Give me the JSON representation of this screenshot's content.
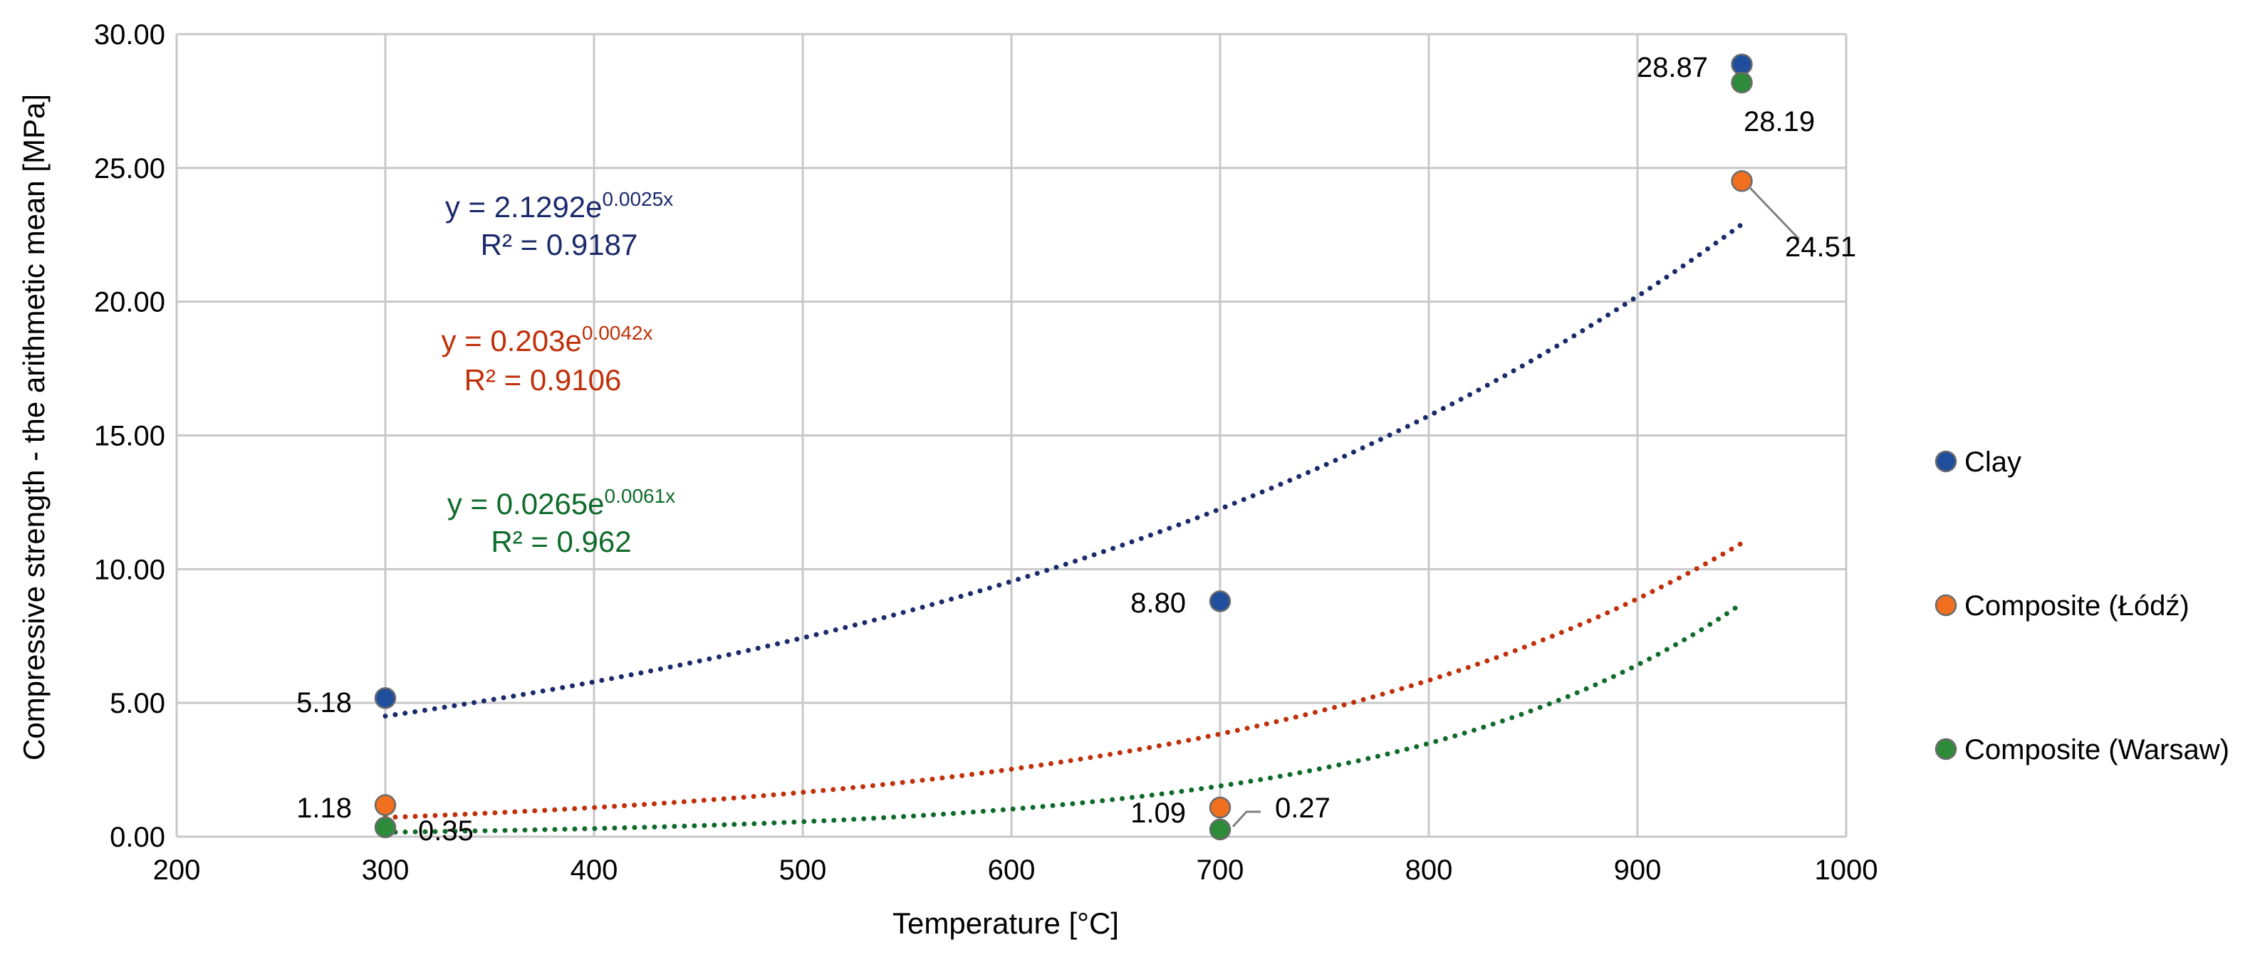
{
  "chart_data": {
    "type": "scatter",
    "title": "",
    "xlabel": "Temperature [°C]",
    "ylabel": "Compressive strength - the arithmetic mean [MPa]",
    "xlim": [
      200,
      1000
    ],
    "ylim": [
      0,
      30
    ],
    "xticks": [
      200,
      300,
      400,
      500,
      600,
      700,
      800,
      900,
      1000
    ],
    "xtick_labels": [
      "200",
      "300",
      "400",
      "500",
      "600",
      "700",
      "800",
      "900",
      "1000"
    ],
    "yticks": [
      0,
      5,
      10,
      15,
      20,
      25,
      30
    ],
    "ytick_labels": [
      "0.00",
      "5.00",
      "10.00",
      "15.00",
      "20.00",
      "25.00",
      "30.00"
    ],
    "grid": true,
    "legend_position": "right",
    "series": [
      {
        "name": "Clay",
        "color": "#1f4e9c",
        "x": [
          300,
          700,
          950
        ],
        "values": [
          5.18,
          8.8,
          28.87
        ],
        "labels": [
          "5.18",
          "8.80",
          "28.87"
        ],
        "trend": {
          "a": 2.1292,
          "b": 0.0025,
          "color": "#1b2a6b",
          "equation_prefix": "y = 2.1292e",
          "equation_exp": "0.0025x",
          "r2_text": "R² = 0.9187"
        }
      },
      {
        "name": "Composite (Łódź)",
        "color": "#f07020",
        "x": [
          300,
          700,
          950
        ],
        "values": [
          1.18,
          1.09,
          24.51
        ],
        "labels": [
          "1.18",
          "1.09",
          "24.51"
        ],
        "trend": {
          "a": 0.203,
          "b": 0.0042,
          "color": "#c0300a",
          "equation_prefix": "y = 0.203e",
          "equation_exp": "0.0042x",
          "r2_text": "R² = 0.9106"
        }
      },
      {
        "name": "Composite (Warsaw)",
        "color": "#2e8b3a",
        "x": [
          300,
          700,
          950
        ],
        "values": [
          0.35,
          0.27,
          28.19
        ],
        "labels": [
          "0.35",
          "0.27",
          "28.19"
        ],
        "trend": {
          "a": 0.0265,
          "b": 0.0061,
          "color": "#0f6b2a",
          "equation_prefix": "y = 0.0265e",
          "equation_exp": "0.0061x",
          "r2_text": "R² = 0.962"
        }
      }
    ]
  }
}
